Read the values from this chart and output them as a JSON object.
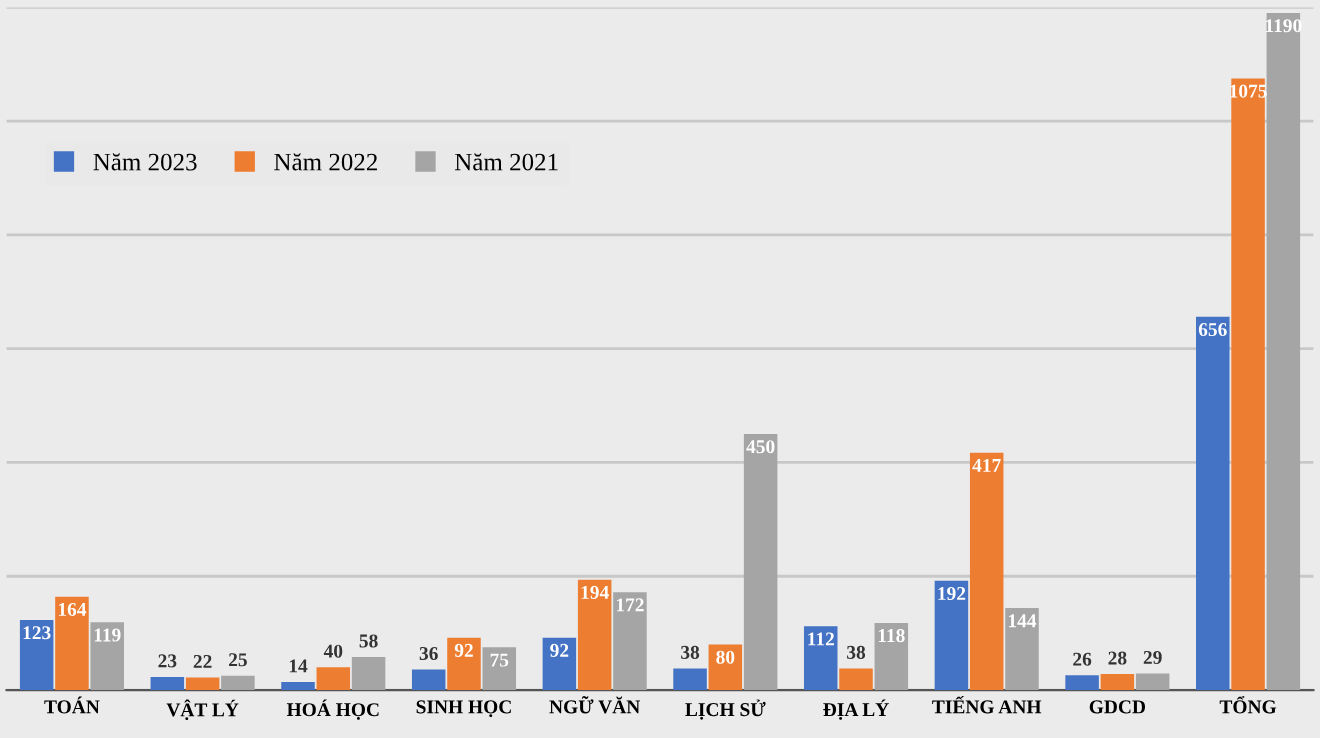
{
  "chart_data": {
    "type": "bar",
    "categories": [
      "TOÁN",
      "VẬT LÝ",
      "HOÁ HỌC",
      "SINH HỌC",
      "NGỮ VĂN",
      "LỊCH SỬ",
      "ĐỊA LÝ",
      "TIẾNG ANH",
      "GDCD",
      "TỔNG"
    ],
    "series": [
      {
        "name": "Năm 2023",
        "color": "#4472c4",
        "values": [
          123,
          23,
          14,
          36,
          92,
          38,
          112,
          192,
          26,
          656
        ]
      },
      {
        "name": "Năm 2022",
        "color": "#ed7d31",
        "values": [
          164,
          22,
          40,
          92,
          194,
          80,
          38,
          417,
          28,
          1075
        ]
      },
      {
        "name": "Năm 2021",
        "color": "#a5a5a5",
        "values": [
          119,
          25,
          58,
          75,
          172,
          450,
          118,
          144,
          29,
          1190
        ]
      }
    ],
    "ylim": [
      0,
      1200
    ],
    "yticks": [
      {
        "value": 0,
        "label": null
      },
      {
        "value": 200,
        "label": null
      },
      {
        "value": 400,
        "label": null
      },
      {
        "value": 600,
        "label": null
      },
      {
        "value": 800,
        "label": null
      },
      {
        "value": 1000,
        "label": null
      },
      {
        "value": 1200,
        "label": null
      }
    ],
    "tick_labels": "x",
    "grid": "y",
    "legend": "top left",
    "data_labels": true
  }
}
